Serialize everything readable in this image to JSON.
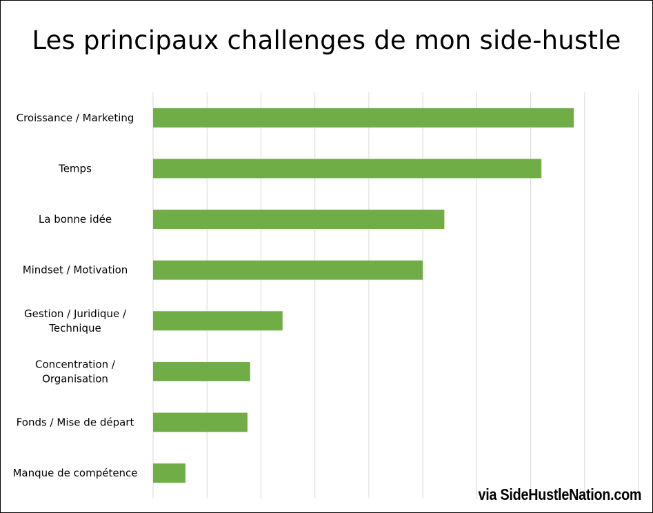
{
  "chart_data": {
    "type": "bar",
    "orientation": "horizontal",
    "title": "Les principaux challenges de mon side-hustle",
    "categories": [
      [
        "Croissance / Marketing"
      ],
      [
        "Temps"
      ],
      [
        "La bonne idée"
      ],
      [
        "Mindset / Motivation"
      ],
      [
        "Gestion / Juridique /",
        "Technique"
      ],
      [
        "Concentration /",
        "Organisation"
      ],
      [
        "Fonds / Mise de départ"
      ],
      [
        "Manque de compétence"
      ]
    ],
    "values": [
      7.8,
      7.2,
      5.4,
      5.0,
      2.4,
      1.8,
      1.75,
      0.6
    ],
    "xlim": [
      0,
      9
    ],
    "grid": true,
    "bar_color": "#70AD47",
    "grid_color": "#D9D9D9"
  },
  "watermark": "via SideHustleNation.com"
}
